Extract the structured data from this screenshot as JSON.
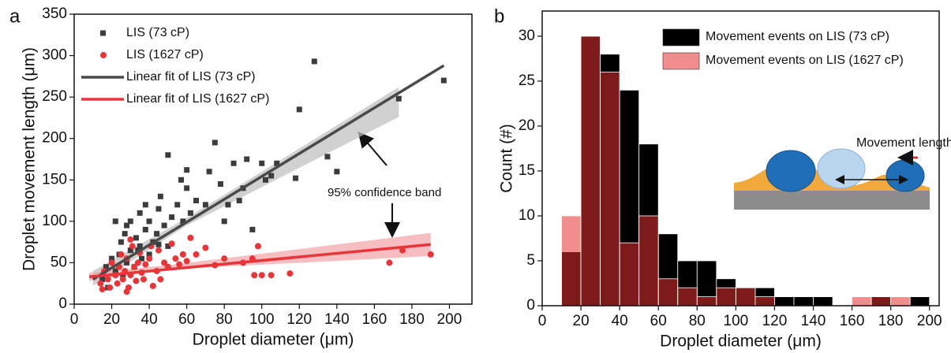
{
  "chart_data": [
    {
      "type": "scatter",
      "panel_label": "a",
      "xlabel": "Droplet diameter (μm)",
      "ylabel": "Droplet movement length (μm)",
      "xlim": [
        0,
        212
      ],
      "ylim": [
        0,
        350
      ],
      "xticks": [
        0,
        20,
        40,
        60,
        80,
        100,
        120,
        140,
        160,
        180,
        200
      ],
      "yticks": [
        0,
        50,
        100,
        150,
        200,
        250,
        300,
        350
      ],
      "annotation": "95% confidence band",
      "series": [
        {
          "name": "LIS (73 cP)",
          "marker": "square",
          "color": "#3c3c3c",
          "x": [
            15,
            17,
            18,
            20,
            22,
            22,
            24,
            25,
            26,
            27,
            28,
            30,
            30,
            32,
            33,
            35,
            35,
            36,
            38,
            38,
            40,
            40,
            42,
            44,
            45,
            46,
            48,
            50,
            50,
            52,
            55,
            57,
            58,
            60,
            60,
            62,
            65,
            70,
            72,
            75,
            78,
            80,
            82,
            85,
            88,
            90,
            92,
            95,
            100,
            102,
            105,
            108,
            118,
            120,
            128,
            135,
            140,
            173,
            197,
            45,
            34,
            28
          ],
          "values": [
            30,
            45,
            20,
            55,
            40,
            100,
            60,
            75,
            35,
            85,
            50,
            65,
            100,
            45,
            80,
            70,
            110,
            55,
            90,
            120,
            60,
            100,
            75,
            85,
            115,
            130,
            95,
            180,
            70,
            105,
            120,
            150,
            100,
            140,
            162,
            110,
            125,
            120,
            160,
            195,
            145,
            100,
            120,
            170,
            125,
            140,
            175,
            90,
            170,
            150,
            155,
            170,
            152,
            235,
            293,
            178,
            160,
            248,
            270,
            72,
            65,
            95
          ]
        },
        {
          "name": "LIS (1627 cP)",
          "marker": "circle",
          "color": "#e8353a",
          "x": [
            14,
            15,
            16,
            18,
            19,
            20,
            22,
            23,
            24,
            25,
            26,
            27,
            28,
            29,
            30,
            31,
            32,
            33,
            34,
            35,
            36,
            37,
            38,
            40,
            41,
            42,
            44,
            45,
            46,
            48,
            50,
            52,
            54,
            56,
            58,
            60,
            62,
            65,
            70,
            75,
            80,
            90,
            95,
            96,
            98,
            100,
            105,
            115,
            168,
            175,
            190,
            30,
            28
          ],
          "values": [
            25,
            18,
            40,
            30,
            20,
            50,
            35,
            25,
            45,
            60,
            30,
            40,
            55,
            20,
            35,
            70,
            45,
            28,
            50,
            62,
            38,
            30,
            48,
            55,
            70,
            22,
            40,
            65,
            30,
            50,
            45,
            73,
            55,
            48,
            60,
            52,
            80,
            60,
            68,
            47,
            55,
            50,
            55,
            35,
            70,
            35,
            35,
            37,
            50,
            65,
            60,
            78,
            15
          ]
        },
        {
          "name": "Linear fit of LIS (73 cP)",
          "marker": "line",
          "color": "#4a4a4a",
          "band_color": "#bdbdbd",
          "x": [
            10,
            197
          ],
          "values": [
            30,
            288
          ],
          "band_x": [
            10,
            60,
            173
          ],
          "band_lower": [
            22,
            95,
            226
          ],
          "band_upper": [
            40,
            104,
            262
          ]
        },
        {
          "name": "Linear fit of LIS (1627 cP)",
          "marker": "line",
          "color": "#e8353a",
          "band_color": "#f4a3a6",
          "x": [
            8,
            190
          ],
          "values": [
            33,
            72
          ],
          "band_x": [
            8,
            50,
            190
          ],
          "band_lower": [
            28,
            42,
            58
          ],
          "band_upper": [
            38,
            47,
            86
          ]
        }
      ]
    },
    {
      "type": "histogram",
      "panel_label": "b",
      "xlabel": "Droplet diameter (μm)",
      "ylabel": "Count (#)",
      "xlim": [
        0,
        205
      ],
      "ylim": [
        0,
        32.8
      ],
      "xticks": [
        0,
        20,
        40,
        60,
        80,
        100,
        120,
        140,
        160,
        180,
        200
      ],
      "yticks": [
        0,
        5,
        10,
        15,
        20,
        25,
        30
      ],
      "annotation": "Movement length",
      "bins": [
        10,
        20,
        30,
        40,
        50,
        60,
        70,
        80,
        90,
        100,
        110,
        120,
        130,
        140,
        150,
        160,
        170,
        180,
        190,
        200
      ],
      "series": [
        {
          "name": "Movement events on LIS (73 cP)",
          "color": "#000000",
          "values": [
            6,
            30,
            28,
            24,
            18,
            8,
            5,
            5,
            3,
            2,
            2,
            1,
            1,
            1,
            0,
            0,
            1,
            0,
            1
          ]
        },
        {
          "name": "Movement events on LIS (1627 cP)",
          "color": "#e53030",
          "values": [
            10,
            30,
            26,
            7,
            10,
            3,
            2,
            1,
            2,
            2,
            1,
            0,
            0,
            0,
            0,
            1,
            1,
            1,
            0
          ]
        }
      ]
    }
  ]
}
